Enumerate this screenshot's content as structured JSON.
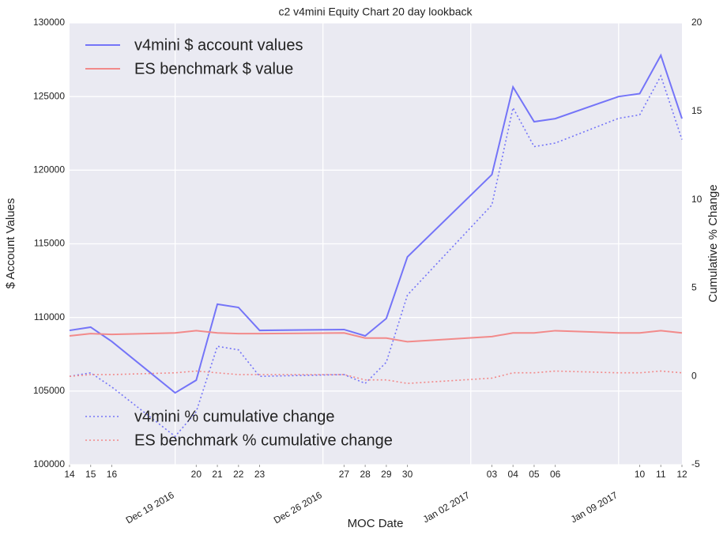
{
  "chart_data": {
    "type": "line",
    "title": "c2 v4mini Equity Chart 20 day lookback",
    "x_label": "MOC Date",
    "y_label": "$ Account Values",
    "y2_label": "Cumulative % Change",
    "x": [
      "2016-12-14",
      "2016-12-15",
      "2016-12-16",
      "2016-12-19",
      "2016-12-20",
      "2016-12-21",
      "2016-12-22",
      "2016-12-23",
      "2016-12-27",
      "2016-12-28",
      "2016-12-29",
      "2016-12-30",
      "2017-01-03",
      "2017-01-04",
      "2017-01-05",
      "2017-01-06",
      "2017-01-09",
      "2017-01-10",
      "2017-01-11",
      "2017-01-12"
    ],
    "xlim": [
      "2016-12-14",
      "2017-01-12"
    ],
    "xticks": [
      {
        "value": "2016-12-14",
        "label": "14"
      },
      {
        "value": "2016-12-15",
        "label": "15"
      },
      {
        "value": "2016-12-16",
        "label": "16"
      },
      {
        "value": "2016-12-20",
        "label": "20"
      },
      {
        "value": "2016-12-21",
        "label": "21"
      },
      {
        "value": "2016-12-22",
        "label": "22"
      },
      {
        "value": "2016-12-23",
        "label": "23"
      },
      {
        "value": "2016-12-27",
        "label": "27"
      },
      {
        "value": "2016-12-28",
        "label": "28"
      },
      {
        "value": "2016-12-29",
        "label": "29"
      },
      {
        "value": "2016-12-30",
        "label": "30"
      },
      {
        "value": "2017-01-03",
        "label": "03"
      },
      {
        "value": "2017-01-04",
        "label": "04"
      },
      {
        "value": "2017-01-05",
        "label": "05"
      },
      {
        "value": "2017-01-06",
        "label": "06"
      },
      {
        "value": "2017-01-10",
        "label": "10"
      },
      {
        "value": "2017-01-11",
        "label": "11"
      },
      {
        "value": "2017-01-12",
        "label": "12"
      }
    ],
    "xticks_major": [
      {
        "value": "2016-12-19",
        "label": "Dec 19 2016"
      },
      {
        "value": "2016-12-26",
        "label": "Dec 26 2016"
      },
      {
        "value": "2017-01-02",
        "label": "Jan 02 2017"
      },
      {
        "value": "2017-01-09",
        "label": "Jan 09 2017"
      }
    ],
    "ylim": [
      100000,
      130000
    ],
    "yticks": [
      100000,
      105000,
      110000,
      115000,
      120000,
      125000,
      130000
    ],
    "y2lim": [
      -5,
      20
    ],
    "y2ticks": [
      -5,
      0,
      5,
      10,
      15,
      20
    ],
    "grid": true,
    "legend": "upper left",
    "legend2": "lower left",
    "series": [
      {
        "name": "v4mini $ account values",
        "color": "#7474f8",
        "dash": "solid",
        "values": [
          109120,
          109340,
          108370,
          104880,
          105740,
          110900,
          110680,
          109120,
          109180,
          108750,
          109930,
          114110,
          119700,
          125650,
          123290,
          123500,
          125000,
          125200,
          127800,
          123500
        ]
      },
      {
        "name": "ES benchmark $ value",
        "color": "#f28a8a",
        "dash": "solid",
        "values": [
          108750,
          108900,
          108850,
          108950,
          109100,
          108950,
          108900,
          108900,
          108950,
          108600,
          108600,
          108350,
          108700,
          108950,
          108950,
          109100,
          108950,
          108950,
          109100,
          108950
        ]
      },
      {
        "name": "v4mini % cumulative change",
        "color": "#7474f8",
        "dash": "dotted",
        "axis": "y2",
        "values": [
          0,
          0.2,
          -0.6,
          -3.4,
          -2.0,
          1.7,
          1.5,
          0,
          0.1,
          -0.4,
          0.8,
          4.6,
          9.7,
          15.2,
          13.0,
          13.2,
          14.6,
          14.8,
          17.0,
          13.4
        ]
      },
      {
        "name": "ES benchmark % cumulative change",
        "color": "#f28a8a",
        "dash": "dotted",
        "axis": "y2",
        "values": [
          0,
          0.1,
          0.1,
          0.2,
          0.3,
          0.2,
          0.1,
          0.1,
          0.1,
          -0.2,
          -0.2,
          -0.4,
          -0.1,
          0.2,
          0.2,
          0.3,
          0.2,
          0.2,
          0.3,
          0.2
        ]
      }
    ]
  }
}
